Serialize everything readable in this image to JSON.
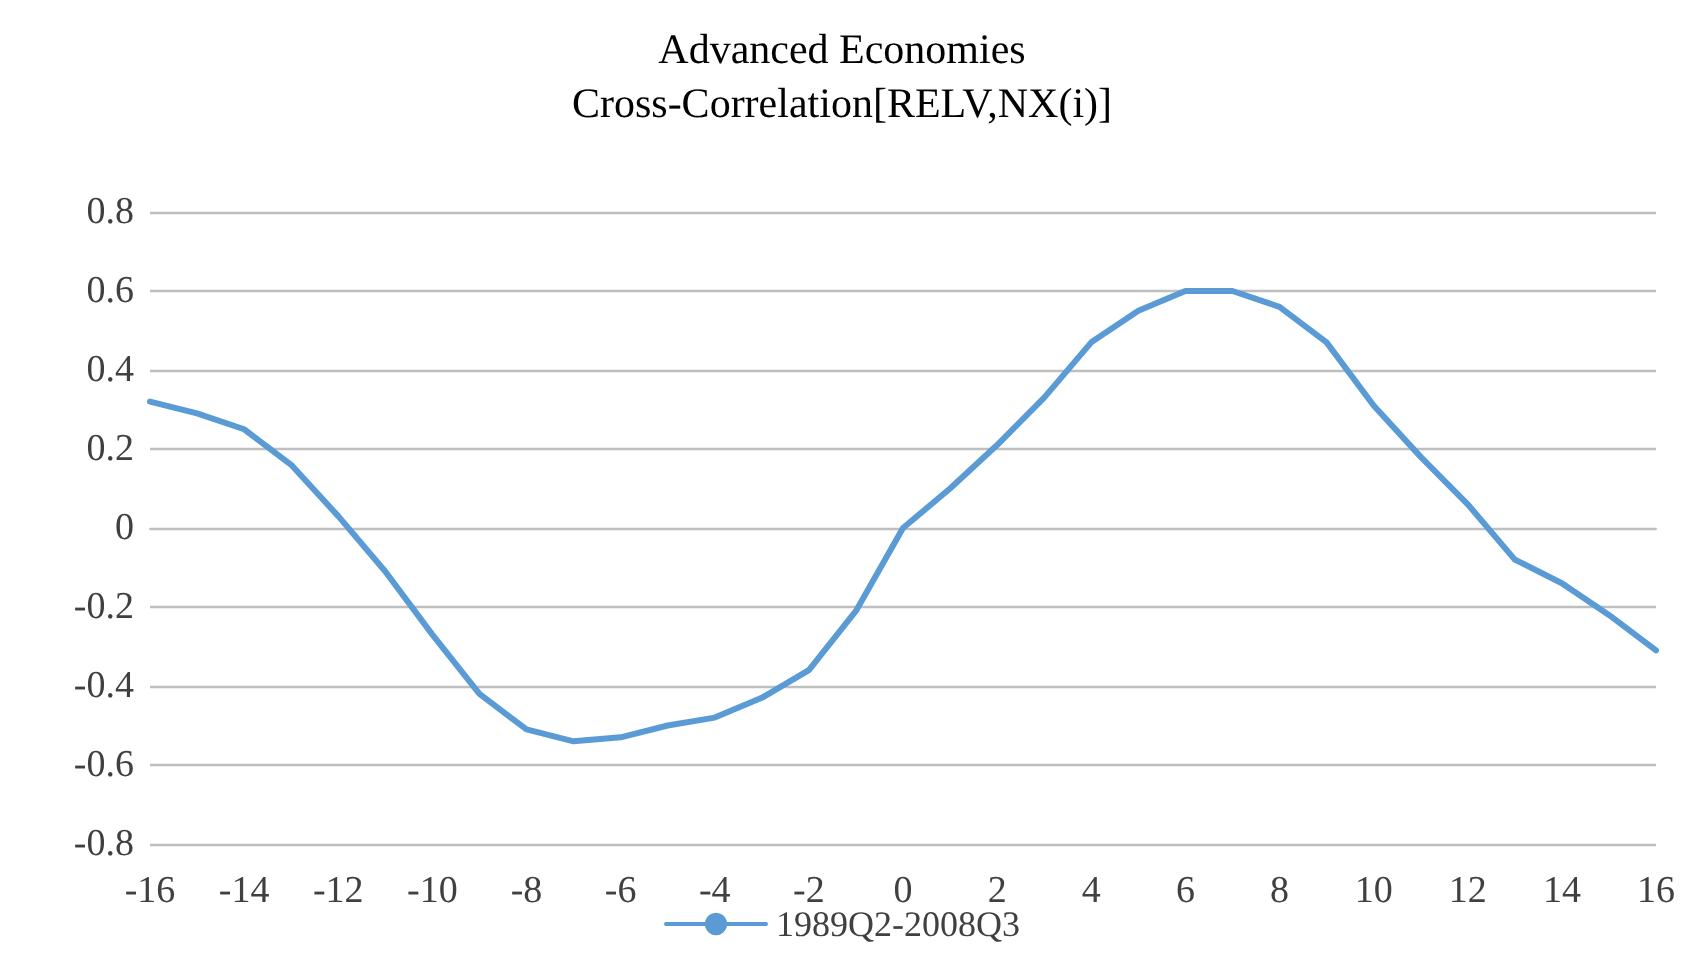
{
  "chart_data": {
    "type": "line",
    "title": "Advanced Economies\nCross-Correlation[RELV,NX(i)]",
    "categories": [
      "-16",
      null,
      "-14",
      null,
      "-12",
      null,
      "-10",
      null,
      "-8",
      null,
      "-6",
      null,
      "-4",
      null,
      "-2",
      null,
      "0",
      null,
      "2",
      null,
      "4",
      null,
      "6",
      null,
      "8",
      null,
      "10",
      null,
      "12",
      null,
      "14",
      null,
      "16"
    ],
    "series": [
      {
        "name": "1989Q2-2008Q3",
        "color": "#5b9bd5",
        "values": [
          0.32,
          0.29,
          0.25,
          0.16,
          0.03,
          -0.11,
          -0.27,
          -0.42,
          -0.51,
          -0.54,
          -0.53,
          -0.5,
          -0.48,
          -0.43,
          -0.36,
          -0.21,
          0.0,
          0.1,
          0.21,
          0.33,
          0.47,
          0.55,
          0.6,
          0.6,
          0.56,
          0.47,
          0.31,
          0.18,
          0.06,
          -0.08,
          -0.14,
          -0.22,
          -0.31
        ]
      }
    ],
    "ylim": [
      -0.8,
      0.8
    ],
    "yticks": [
      -0.8,
      -0.6,
      -0.4,
      -0.2,
      0,
      0.2,
      0.4,
      0.6,
      0.8
    ],
    "grid": "y",
    "legend": "bottom",
    "marker": "none",
    "line_style": "solid"
  }
}
